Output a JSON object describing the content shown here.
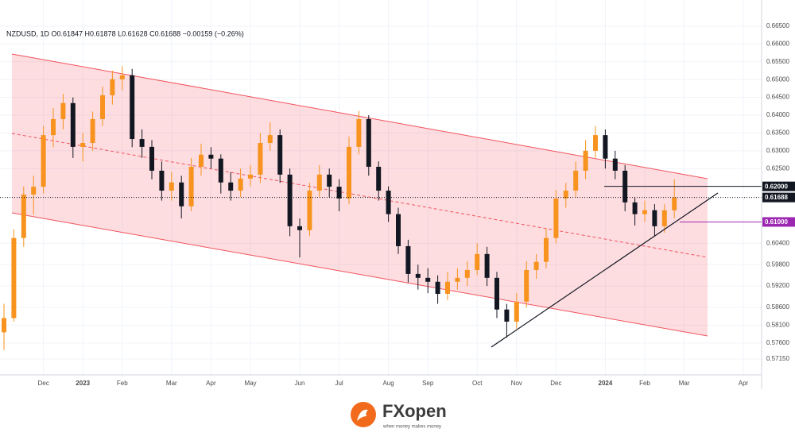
{
  "chart_data": {
    "type": "candlestick",
    "title": "NZDUSD, 1D  O0.61847  H0.61878  L0.61628  C0.61688  −0.00159 (−0.26%)",
    "categories": [
      null,
      null,
      null,
      null,
      "Dec",
      null,
      null,
      null,
      "2023",
      null,
      null,
      null,
      "Feb",
      null,
      null,
      null,
      null,
      "Mar",
      null,
      null,
      null,
      "Apr",
      null,
      null,
      null,
      "May",
      null,
      null,
      null,
      null,
      "Jun",
      null,
      null,
      null,
      "Jul",
      null,
      null,
      null,
      null,
      "Aug",
      null,
      null,
      null,
      "Sep",
      null,
      null,
      null,
      null,
      "Oct",
      null,
      null,
      null,
      "Nov",
      null,
      null,
      null,
      "Dec",
      null,
      null,
      null,
      null,
      "2024",
      null,
      null,
      null,
      "Feb",
      null,
      null,
      null,
      "Mar",
      null,
      null,
      null,
      null,
      null,
      "Apr",
      null,
      null
    ],
    "open": [
      0.579,
      0.583,
      0.6055,
      0.6177,
      0.6199,
      0.6344,
      0.6389,
      0.6434,
      0.6311,
      0.6322,
      0.6389,
      0.6456,
      0.6501,
      0.6512,
      0.6333,
      0.6311,
      0.6244,
      0.6188,
      0.6211,
      0.6144,
      0.6255,
      0.6289,
      0.6278,
      0.6211,
      0.6188,
      0.6222,
      0.6233,
      0.6322,
      0.6344,
      0.6233,
      0.6088,
      0.6077,
      0.6188,
      0.6233,
      0.6199,
      0.6166,
      0.6311,
      0.6389,
      0.6255,
      0.6188,
      0.6122,
      0.6032,
      0.5954,
      0.5943,
      0.5932,
      0.5898,
      0.5932,
      0.5943,
      0.5965,
      0.601,
      0.5943,
      0.5854,
      0.582,
      0.5876,
      0.5965,
      0.5988,
      0.6055,
      0.6166,
      0.6188,
      0.6244,
      0.63,
      0.6344,
      0.6278,
      0.6244,
      0.6155,
      0.6122,
      0.6133,
      0.6088,
      0.6133,
      null,
      null,
      null,
      null,
      null,
      null,
      null,
      null,
      null
    ],
    "high": [
      0.587,
      0.608,
      0.62,
      0.623,
      0.637,
      0.642,
      0.646,
      0.645,
      0.635,
      0.641,
      0.648,
      0.6525,
      0.6538,
      0.653,
      0.636,
      0.633,
      0.627,
      0.624,
      0.623,
      0.628,
      0.632,
      0.631,
      0.629,
      0.624,
      0.625,
      0.626,
      0.635,
      0.638,
      0.636,
      0.625,
      0.611,
      0.621,
      0.626,
      0.625,
      0.622,
      0.634,
      0.6412,
      0.64,
      0.627,
      0.62,
      0.614,
      0.605,
      0.598,
      0.597,
      0.595,
      0.596,
      0.597,
      0.599,
      0.604,
      0.603,
      0.596,
      0.587,
      0.59,
      0.599,
      0.601,
      0.608,
      0.619,
      0.621,
      0.627,
      0.633,
      0.6369,
      0.636,
      0.63,
      0.626,
      0.617,
      0.616,
      0.615,
      0.615,
      0.622,
      null,
      null,
      null,
      null,
      null,
      null,
      null,
      null,
      null
    ],
    "low": [
      0.574,
      0.582,
      0.603,
      0.612,
      0.618,
      0.631,
      0.636,
      0.628,
      0.627,
      0.63,
      0.637,
      0.643,
      0.647,
      0.631,
      0.628,
      0.622,
      0.616,
      0.616,
      0.611,
      0.613,
      0.623,
      0.625,
      0.618,
      0.616,
      0.617,
      0.62,
      0.621,
      0.63,
      0.621,
      0.606,
      0.6,
      0.606,
      0.617,
      0.617,
      0.613,
      0.615,
      0.629,
      0.623,
      0.616,
      0.61,
      0.601,
      0.593,
      0.591,
      0.59,
      0.587,
      0.588,
      0.591,
      0.592,
      0.595,
      0.592,
      0.583,
      0.5775,
      0.58,
      0.586,
      0.594,
      0.597,
      0.604,
      0.614,
      0.617,
      0.622,
      0.628,
      0.625,
      0.622,
      0.613,
      0.609,
      0.61,
      0.606,
      0.607,
      0.611,
      null,
      null,
      null,
      null,
      null,
      null,
      null,
      null,
      null
    ],
    "close": [
      0.583,
      0.6055,
      0.6177,
      0.6199,
      0.6344,
      0.6389,
      0.6434,
      0.6311,
      0.6322,
      0.6389,
      0.6456,
      0.6501,
      0.6512,
      0.6333,
      0.6311,
      0.6244,
      0.6188,
      0.6211,
      0.6144,
      0.6255,
      0.6289,
      0.6278,
      0.6211,
      0.6188,
      0.6222,
      0.6233,
      0.6322,
      0.6344,
      0.6233,
      0.6088,
      0.6077,
      0.6188,
      0.6233,
      0.6199,
      0.6166,
      0.6311,
      0.6389,
      0.6255,
      0.6188,
      0.6122,
      0.6032,
      0.5954,
      0.5943,
      0.5932,
      0.5898,
      0.5932,
      0.5943,
      0.5965,
      0.601,
      0.5943,
      0.5854,
      0.582,
      0.5876,
      0.5965,
      0.5988,
      0.6055,
      0.6166,
      0.6188,
      0.6244,
      0.63,
      0.6344,
      0.6278,
      0.6244,
      0.6155,
      0.6122,
      0.6133,
      0.6088,
      0.6133,
      0.61688,
      null,
      null,
      null,
      null,
      null,
      null,
      null,
      null,
      null
    ],
    "up_color": "#f7931e",
    "down_color": "#131722",
    "ylim": [
      0.56704,
      0.67236
    ],
    "yticks": [
      {
        "value": 0.665,
        "label": "0.66500"
      },
      {
        "value": 0.66,
        "label": "0.66000"
      },
      {
        "value": 0.655,
        "label": "0.65500"
      },
      {
        "value": 0.65,
        "label": "0.65000"
      },
      {
        "value": 0.645,
        "label": "0.64500"
      },
      {
        "value": 0.64,
        "label": "0.64000"
      },
      {
        "value": 0.635,
        "label": "0.63500"
      },
      {
        "value": 0.63,
        "label": "0.63000"
      },
      {
        "value": 0.625,
        "label": "0.62500"
      },
      {
        "value": 0.604,
        "label": "0.60400"
      },
      {
        "value": 0.598,
        "label": "0.59800"
      },
      {
        "value": 0.592,
        "label": "0.59200"
      },
      {
        "value": 0.586,
        "label": "0.58600"
      },
      {
        "value": 0.581,
        "label": "0.58100"
      },
      {
        "value": 0.576,
        "label": "0.57600"
      },
      {
        "value": 0.5715,
        "label": "0.57150"
      }
    ],
    "levels": [
      {
        "value": 0.62,
        "label": "0.62000",
        "color": "#131722"
      },
      {
        "value": 0.61688,
        "label": "0.61688",
        "color": "#131722"
      },
      {
        "value": 0.61,
        "label": "0.61000",
        "color": "#9c27b0"
      }
    ],
    "grid": true
  },
  "logo": {
    "brand": "FXopen",
    "tagline": "when money makes money"
  }
}
